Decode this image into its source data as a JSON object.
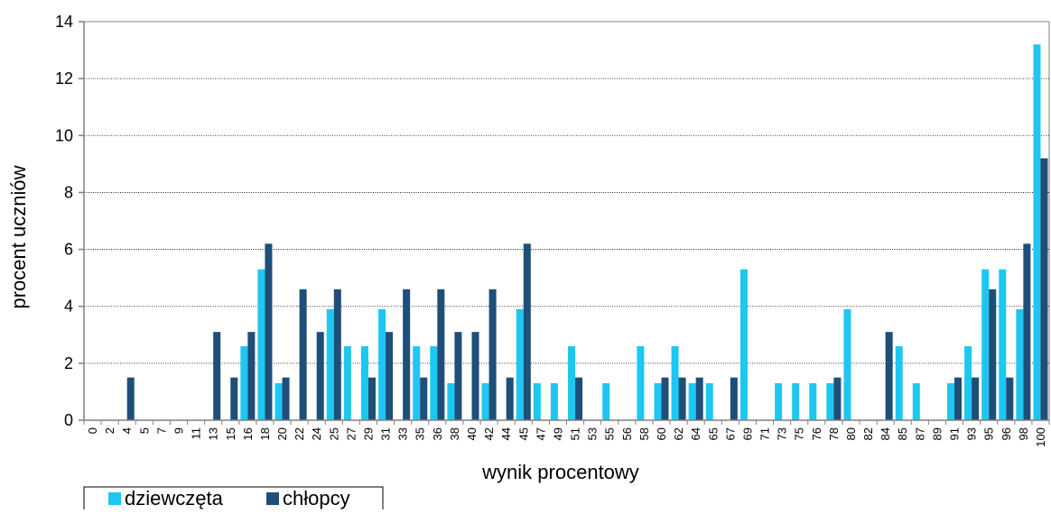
{
  "chart_data": {
    "type": "bar",
    "xlabel": "wynik procentowy",
    "ylabel": "procent uczniów",
    "ylim": [
      0,
      14
    ],
    "yticks": [
      0,
      2,
      4,
      6,
      8,
      10,
      12,
      14
    ],
    "grid": true,
    "grid_style": "dotted-horizontal",
    "legend_position": "bottom-left",
    "categories": [
      "0",
      "2",
      "4",
      "5",
      "7",
      "9",
      "11",
      "13",
      "15",
      "16",
      "18",
      "20",
      "22",
      "24",
      "25",
      "27",
      "29",
      "31",
      "33",
      "35",
      "36",
      "38",
      "40",
      "42",
      "44",
      "45",
      "47",
      "49",
      "51",
      "53",
      "55",
      "56",
      "58",
      "60",
      "62",
      "64",
      "65",
      "67",
      "69",
      "71",
      "73",
      "75",
      "76",
      "78",
      "80",
      "82",
      "84",
      "85",
      "87",
      "89",
      "91",
      "93",
      "95",
      "96",
      "98",
      "100"
    ],
    "series": [
      {
        "name": "dziewczęta",
        "color": "#1ec7f2",
        "values": [
          0,
          0,
          0,
          0,
          0,
          0,
          0,
          0,
          0,
          2.6,
          5.3,
          1.3,
          0,
          0,
          3.9,
          2.6,
          2.6,
          3.9,
          0,
          2.6,
          2.6,
          1.3,
          0,
          1.3,
          0,
          3.9,
          1.3,
          1.3,
          2.6,
          0,
          1.3,
          0,
          2.6,
          1.3,
          2.6,
          1.3,
          1.3,
          0,
          5.3,
          0,
          1.3,
          1.3,
          1.3,
          1.3,
          3.9,
          0,
          0,
          2.6,
          1.3,
          0,
          1.3,
          2.6,
          5.3,
          5.3,
          3.9,
          13.2
        ]
      },
      {
        "name": "chłopcy",
        "color": "#1f4e79",
        "values": [
          0,
          0,
          1.5,
          0,
          0,
          0,
          0,
          3.1,
          1.5,
          3.1,
          6.2,
          1.5,
          4.6,
          3.1,
          4.6,
          0,
          1.5,
          3.1,
          4.6,
          1.5,
          4.6,
          3.1,
          3.1,
          4.6,
          1.5,
          6.2,
          0,
          0,
          1.5,
          0,
          0,
          0,
          0,
          1.5,
          1.5,
          1.5,
          0,
          1.5,
          0,
          0,
          0,
          0,
          0,
          1.5,
          0,
          0,
          3.1,
          0,
          0,
          0,
          1.5,
          1.5,
          4.6,
          1.5,
          6.2,
          9.2
        ]
      }
    ]
  }
}
